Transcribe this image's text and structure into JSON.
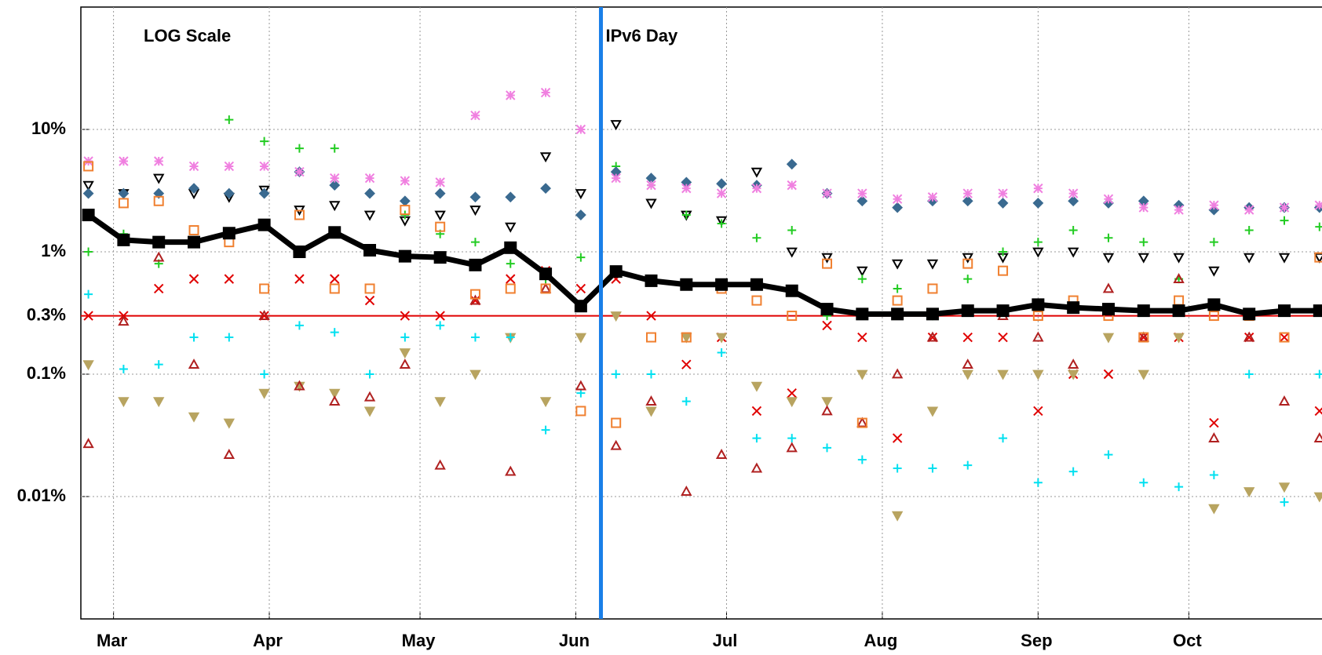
{
  "chart_data": {
    "type": "scatter",
    "yscale": "log",
    "ylim": [
      0.001,
      100
    ],
    "yticks": [
      {
        "value": 10,
        "label": "10%"
      },
      {
        "value": 1,
        "label": "1%"
      },
      {
        "value": 0.3,
        "label": "0.3%"
      },
      {
        "value": 0.1,
        "label": "0.1%"
      },
      {
        "value": 0.01,
        "label": "0.01%"
      }
    ],
    "xlim": [
      53.5,
      300.5
    ],
    "xticks": [
      {
        "value": 60,
        "label": "Mar"
      },
      {
        "value": 91,
        "label": "Apr"
      },
      {
        "value": 121,
        "label": "May"
      },
      {
        "value": 152,
        "label": "Jun"
      },
      {
        "value": 182,
        "label": "Jul"
      },
      {
        "value": 213,
        "label": "Aug"
      },
      {
        "value": 244,
        "label": "Sep"
      },
      {
        "value": 274,
        "label": "Oct"
      }
    ],
    "grid": true,
    "annotations": [
      {
        "text": "LOG Scale"
      }
    ],
    "reference_lines": [
      {
        "axis": "y",
        "value": 0.3,
        "color": "#e00000"
      },
      {
        "axis": "x",
        "value": 157,
        "color": "#1a7fe8",
        "label": "IPv6 Day"
      }
    ],
    "x": [
      55,
      62,
      69,
      76,
      83,
      90,
      97,
      104,
      111,
      118,
      125,
      132,
      139,
      146,
      153,
      160,
      167,
      174,
      181,
      188,
      195,
      202,
      209,
      216,
      223,
      230,
      237,
      244,
      251,
      258,
      265,
      272,
      279,
      286,
      293,
      300
    ],
    "series": [
      {
        "color": "#000000",
        "marker": "tri-down",
        "filled": false,
        "values": [
          3.5,
          3,
          4,
          3,
          2.8,
          3.2,
          2.2,
          2.4,
          2,
          1.8,
          2,
          2.2,
          1.6,
          6,
          3,
          11,
          2.5,
          2,
          1.8,
          4.5,
          1,
          0.9,
          0.7,
          0.8,
          0.8,
          0.9,
          0.9,
          1,
          1,
          0.9,
          0.9,
          0.9,
          0.7,
          0.9,
          0.9,
          0.9
        ]
      },
      {
        "color": "#e00000",
        "marker": "cross",
        "filled": false,
        "values": [
          0.3,
          0.3,
          0.5,
          0.6,
          0.6,
          0.3,
          0.6,
          0.6,
          0.4,
          0.3,
          0.3,
          0.4,
          0.6,
          0.7,
          0.5,
          0.6,
          0.3,
          0.12,
          0.2,
          0.05,
          0.07,
          0.25,
          0.2,
          0.03,
          0.2,
          0.2,
          0.2,
          0.05,
          0.1,
          0.1,
          0.2,
          0.2,
          0.04,
          0.2,
          0.2,
          0.05
        ]
      },
      {
        "color": "#22cc22",
        "marker": "plus",
        "filled": false,
        "values": [
          1,
          1.4,
          0.8,
          1.2,
          12,
          8,
          7,
          7,
          3,
          2,
          1.4,
          1.2,
          0.8,
          0.6,
          0.9,
          5,
          3.5,
          2,
          1.7,
          1.3,
          1.5,
          0.3,
          0.6,
          0.5,
          0.3,
          0.6,
          1,
          1.2,
          1.5,
          1.3,
          1.2,
          0.6,
          1.2,
          1.5,
          1.8,
          1.6
        ]
      },
      {
        "color": "#b8a460",
        "marker": "tri-down",
        "filled": true,
        "values": [
          0.12,
          0.06,
          0.06,
          0.045,
          0.04,
          0.07,
          0.08,
          0.07,
          0.05,
          0.15,
          0.06,
          0.1,
          0.2,
          0.06,
          0.2,
          0.3,
          0.05,
          0.2,
          0.2,
          0.08,
          0.06,
          0.06,
          0.1,
          0.007,
          0.05,
          0.1,
          0.1,
          0.1,
          0.1,
          0.2,
          0.1,
          0.2,
          0.008,
          0.011,
          0.012,
          0.01
        ]
      },
      {
        "color": "#00e0f0",
        "marker": "plus",
        "filled": false,
        "values": [
          0.45,
          0.11,
          0.12,
          0.2,
          0.2,
          0.1,
          0.25,
          0.22,
          0.1,
          0.2,
          0.25,
          0.2,
          0.2,
          0.035,
          0.07,
          0.1,
          0.1,
          0.06,
          0.15,
          0.03,
          0.03,
          0.025,
          0.02,
          0.017,
          0.017,
          0.018,
          0.03,
          0.013,
          0.016,
          0.022,
          0.013,
          0.012,
          0.015,
          0.1,
          0.009,
          0.1
        ]
      },
      {
        "color": "#3a6a90",
        "marker": "diamond",
        "filled": true,
        "values": [
          3,
          3,
          3,
          3.3,
          3,
          3,
          4.5,
          3.5,
          3,
          2.6,
          3,
          2.8,
          2.8,
          3.3,
          2,
          4.5,
          4,
          3.7,
          3.6,
          3.5,
          5.2,
          3,
          2.6,
          2.3,
          2.6,
          2.6,
          2.5,
          2.5,
          2.6,
          2.5,
          2.6,
          2.4,
          2.2,
          2.3,
          2.3,
          2.3
        ]
      },
      {
        "color": "#f080e0",
        "marker": "star",
        "filled": false,
        "values": [
          5.5,
          5.5,
          5.5,
          5,
          5,
          5,
          4.5,
          4,
          4,
          3.8,
          3.7,
          13,
          19,
          20,
          10,
          4,
          3.5,
          3.3,
          3,
          3.3,
          3.5,
          3,
          3,
          2.7,
          2.8,
          3,
          3,
          3.3,
          3,
          2.7,
          2.3,
          2.2,
          2.4,
          2.2,
          2.3,
          2.4
        ]
      },
      {
        "color": "#b02020",
        "marker": "tri-up",
        "filled": false,
        "values": [
          0.027,
          0.27,
          0.9,
          0.12,
          0.022,
          0.3,
          0.08,
          0.06,
          0.065,
          0.12,
          0.018,
          0.4,
          0.016,
          0.5,
          0.08,
          0.026,
          0.06,
          0.011,
          0.022,
          0.017,
          0.025,
          0.05,
          0.04,
          0.1,
          0.2,
          0.12,
          0.3,
          0.2,
          0.12,
          0.5,
          0.2,
          0.6,
          0.03,
          0.2,
          0.06,
          0.03
        ]
      },
      {
        "color": "#f08030",
        "marker": "square",
        "filled": false,
        "values": [
          5,
          2.5,
          2.6,
          1.5,
          1.2,
          0.5,
          2,
          0.5,
          0.5,
          2.2,
          1.6,
          0.45,
          0.5,
          0.5,
          0.05,
          0.04,
          0.2,
          0.2,
          0.5,
          0.4,
          0.3,
          0.8,
          0.04,
          0.4,
          0.5,
          0.8,
          0.7,
          0.3,
          0.4,
          0.3,
          0.2,
          0.4,
          0.3,
          0.3,
          0.2,
          0.9
        ]
      },
      {
        "color": "#000000",
        "marker": "square",
        "filled": true,
        "line": true,
        "values": [
          2.0,
          1.25,
          1.2,
          1.2,
          1.42,
          1.66,
          1.0,
          1.44,
          1.03,
          0.92,
          0.9,
          0.78,
          1.08,
          0.66,
          0.36,
          0.69,
          0.58,
          0.54,
          0.54,
          0.54,
          0.48,
          0.34,
          0.31,
          0.31,
          0.31,
          0.33,
          0.33,
          0.37,
          0.35,
          0.34,
          0.33,
          0.33,
          0.37,
          0.31,
          0.33,
          0.33
        ]
      }
    ]
  }
}
